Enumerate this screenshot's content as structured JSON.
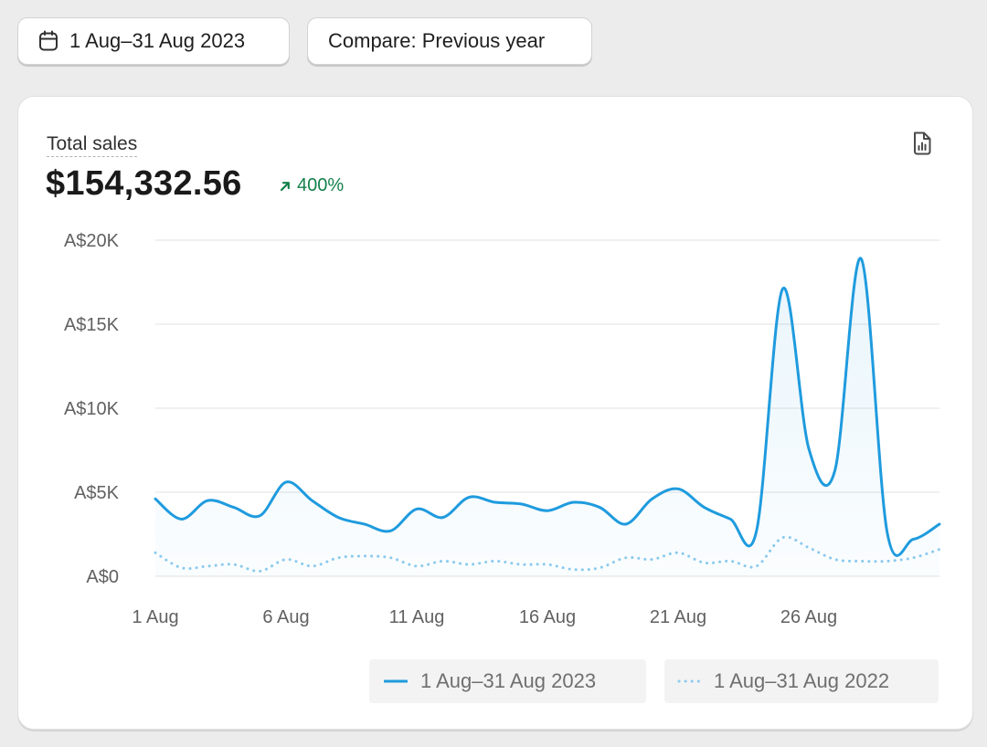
{
  "toolbar": {
    "date_range_label": "1 Aug–31 Aug 2023",
    "compare_label": "Compare: Previous year"
  },
  "card": {
    "metric_title": "Total sales",
    "metric_value": "$154,332.56",
    "change_percent": "400%",
    "colors": {
      "accent": "#1f9bde",
      "comparison": "#8ccbee",
      "positive": "#14804a"
    }
  },
  "chart_data": {
    "type": "line",
    "title": "Total sales",
    "xlabel": "",
    "ylabel": "",
    "x": [
      1,
      2,
      3,
      4,
      5,
      6,
      7,
      8,
      9,
      10,
      11,
      12,
      13,
      14,
      15,
      16,
      17,
      18,
      19,
      20,
      21,
      22,
      23,
      24,
      25,
      26,
      27,
      28,
      29,
      30,
      31
    ],
    "x_ticks": [
      {
        "x": 1,
        "label": "1 Aug"
      },
      {
        "x": 6,
        "label": "6 Aug"
      },
      {
        "x": 11,
        "label": "11 Aug"
      },
      {
        "x": 16,
        "label": "16 Aug"
      },
      {
        "x": 21,
        "label": "21 Aug"
      },
      {
        "x": 26,
        "label": "26 Aug"
      }
    ],
    "y_ticks": [
      {
        "value": 0,
        "label": "A$0"
      },
      {
        "value": 5000,
        "label": "A$5K"
      },
      {
        "value": 10000,
        "label": "A$10K"
      },
      {
        "value": 15000,
        "label": "A$15K"
      },
      {
        "value": 20000,
        "label": "A$20K"
      }
    ],
    "ylim": [
      0,
      20000
    ],
    "grid": true,
    "legend_position": "bottom-right",
    "series": [
      {
        "name": "1 Aug–31 Aug 2023",
        "style": "solid",
        "color": "#1f9bde",
        "values": [
          4600,
          3400,
          4500,
          4100,
          3600,
          5600,
          4500,
          3500,
          3100,
          2700,
          4000,
          3500,
          4700,
          4400,
          4300,
          3900,
          4400,
          4100,
          3100,
          4600,
          5200,
          4100,
          3400,
          2700,
          17100,
          7600,
          6300,
          18900,
          2600,
          2200,
          3100
        ]
      },
      {
        "name": "1 Aug–31 Aug 2022",
        "style": "dotted",
        "color": "#8ccbee",
        "values": [
          1400,
          500,
          600,
          700,
          300,
          1000,
          600,
          1100,
          1200,
          1100,
          600,
          900,
          700,
          900,
          700,
          700,
          400,
          500,
          1100,
          1000,
          1400,
          800,
          900,
          600,
          2300,
          1700,
          1000,
          900,
          900,
          1100,
          1600
        ]
      }
    ]
  }
}
